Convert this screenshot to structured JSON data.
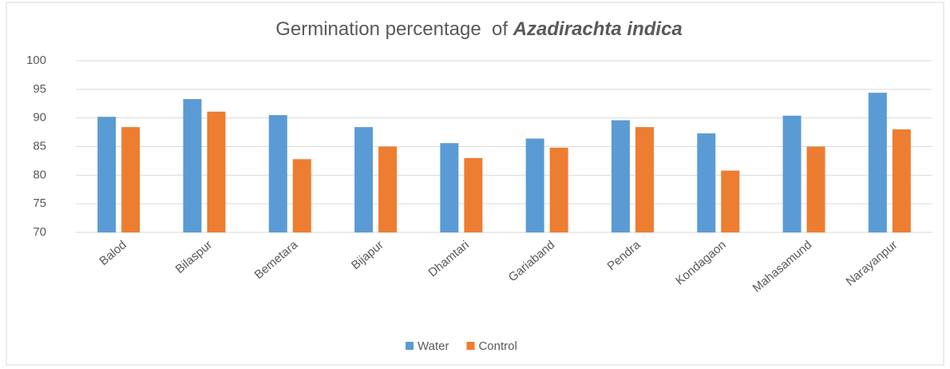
{
  "chart_data": {
    "type": "bar",
    "title": [
      "Germination percentage  of ",
      "Azadirachta indica"
    ],
    "categories": [
      "Balod",
      "Bilaspur",
      "Bemetara",
      "Bijapur",
      "Dhamtari",
      "Gariaband",
      "Pendra",
      "Kondagaon",
      "Mahasamund",
      "Narayanpur"
    ],
    "series": [
      {
        "name": "Water",
        "color": "#5b9bd5",
        "values": [
          90.2,
          93.3,
          90.5,
          88.4,
          85.6,
          86.4,
          89.6,
          87.3,
          90.4,
          94.4
        ]
      },
      {
        "name": "Control",
        "color": "#ed7d31",
        "values": [
          88.4,
          91.1,
          82.8,
          85.0,
          83.0,
          84.8,
          88.4,
          80.8,
          85.0,
          88.0
        ]
      }
    ],
    "ylim": [
      70,
      100
    ],
    "yticks": [
      70,
      75,
      80,
      85,
      90,
      95,
      100
    ],
    "grid": true,
    "legend": "bottom"
  }
}
